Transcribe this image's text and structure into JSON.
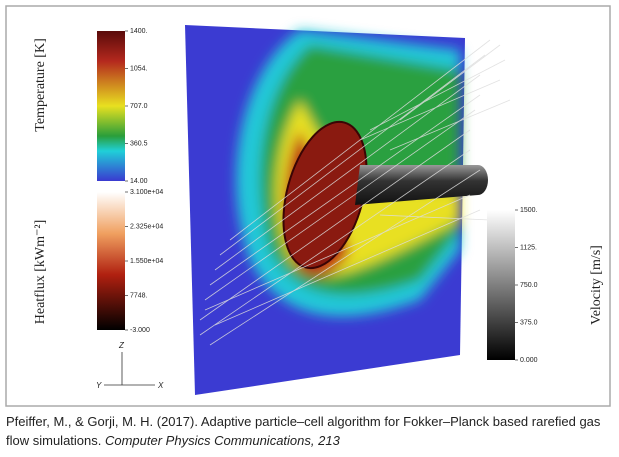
{
  "figure": {
    "colorbars": [
      {
        "label": "Temperature [K]",
        "ticks": [
          "1400.",
          "1054.",
          "707.0",
          "360.5",
          "14.00"
        ]
      },
      {
        "label": "Heatflux [kWm⁻²]",
        "ticks": [
          "3.100e+04",
          "2.325e+04",
          "1.550e+04",
          "7748.",
          "-3.000"
        ]
      },
      {
        "label": "Velocity [m/s]",
        "ticks": [
          "1500.",
          "1125.",
          "750.0",
          "375.0",
          "0.000"
        ]
      }
    ],
    "axes": {
      "z": "Z",
      "y": "Y",
      "x": "X"
    }
  },
  "caption": {
    "text": "Pfeiffer, M., & Gorji, M. H. (2017). Adaptive particle–cell algorithm for Fokker–Planck based rarefied gas flow simulations. ",
    "journal": "Computer Physics Communications, 213"
  }
}
